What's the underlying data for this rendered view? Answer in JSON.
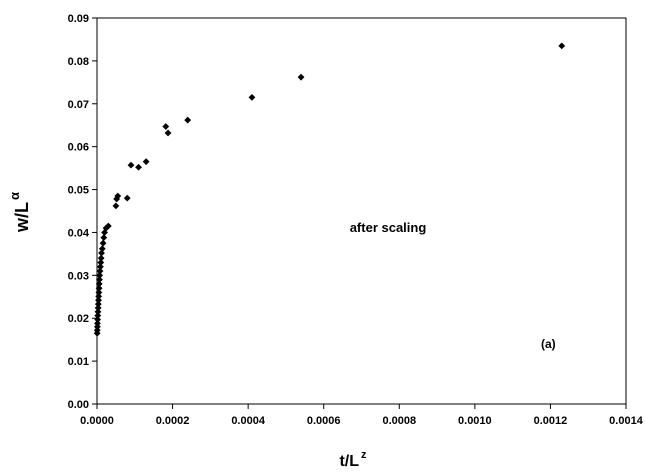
{
  "chart_data": {
    "type": "scatter",
    "title": "",
    "xlabel": {
      "base": "t/L",
      "sup": "z"
    },
    "ylabel": {
      "base": "w/L",
      "sup": "α"
    },
    "xlim": [
      0,
      0.0014
    ],
    "ylim": [
      0,
      0.09
    ],
    "xticks": [
      "0.0000",
      "0.0002",
      "0.0004",
      "0.0006",
      "0.0008",
      "0.0010",
      "0.0012",
      "0.0014"
    ],
    "yticks": [
      "0.00",
      "0.01",
      "0.02",
      "0.03",
      "0.04",
      "0.05",
      "0.06",
      "0.07",
      "0.08",
      "0.09"
    ],
    "grid": false,
    "legend": "none",
    "marker": "diamond",
    "marker_color": "#000000",
    "annotations": [
      "after scaling",
      "(a)"
    ],
    "points": [
      {
        "x": 5e-07,
        "y": 0.0165
      },
      {
        "x": 7e-07,
        "y": 0.0172
      },
      {
        "x": 1e-06,
        "y": 0.018
      },
      {
        "x": 1.3e-06,
        "y": 0.0188
      },
      {
        "x": 1.7e-06,
        "y": 0.0197
      },
      {
        "x": 2e-06,
        "y": 0.0206
      },
      {
        "x": 2.5e-06,
        "y": 0.0215
      },
      {
        "x": 3e-06,
        "y": 0.0224
      },
      {
        "x": 3.5e-06,
        "y": 0.0233
      },
      {
        "x": 4e-06,
        "y": 0.0242
      },
      {
        "x": 4.5e-06,
        "y": 0.0251
      },
      {
        "x": 5e-06,
        "y": 0.026
      },
      {
        "x": 5.5e-06,
        "y": 0.027
      },
      {
        "x": 6e-06,
        "y": 0.028
      },
      {
        "x": 6.5e-06,
        "y": 0.029
      },
      {
        "x": 7e-06,
        "y": 0.03
      },
      {
        "x": 8e-06,
        "y": 0.031
      },
      {
        "x": 9e-06,
        "y": 0.032
      },
      {
        "x": 1e-05,
        "y": 0.033
      },
      {
        "x": 1.1e-05,
        "y": 0.034
      },
      {
        "x": 1.2e-05,
        "y": 0.0352
      },
      {
        "x": 1.4e-05,
        "y": 0.0362
      },
      {
        "x": 1.6e-05,
        "y": 0.0375
      },
      {
        "x": 1.8e-05,
        "y": 0.0388
      },
      {
        "x": 2e-05,
        "y": 0.04
      },
      {
        "x": 2.4e-05,
        "y": 0.041
      },
      {
        "x": 3e-05,
        "y": 0.0415
      },
      {
        "x": 5e-05,
        "y": 0.0462
      },
      {
        "x": 5.2e-05,
        "y": 0.0478
      },
      {
        "x": 5.5e-05,
        "y": 0.0485
      },
      {
        "x": 8e-05,
        "y": 0.048
      },
      {
        "x": 9e-05,
        "y": 0.0557
      },
      {
        "x": 0.00011,
        "y": 0.0552
      },
      {
        "x": 0.00013,
        "y": 0.0565
      },
      {
        "x": 0.000182,
        "y": 0.0647
      },
      {
        "x": 0.000188,
        "y": 0.0632
      },
      {
        "x": 0.00024,
        "y": 0.0662
      },
      {
        "x": 0.00041,
        "y": 0.0715
      },
      {
        "x": 0.00054,
        "y": 0.0762
      },
      {
        "x": 0.00123,
        "y": 0.0835
      }
    ]
  }
}
